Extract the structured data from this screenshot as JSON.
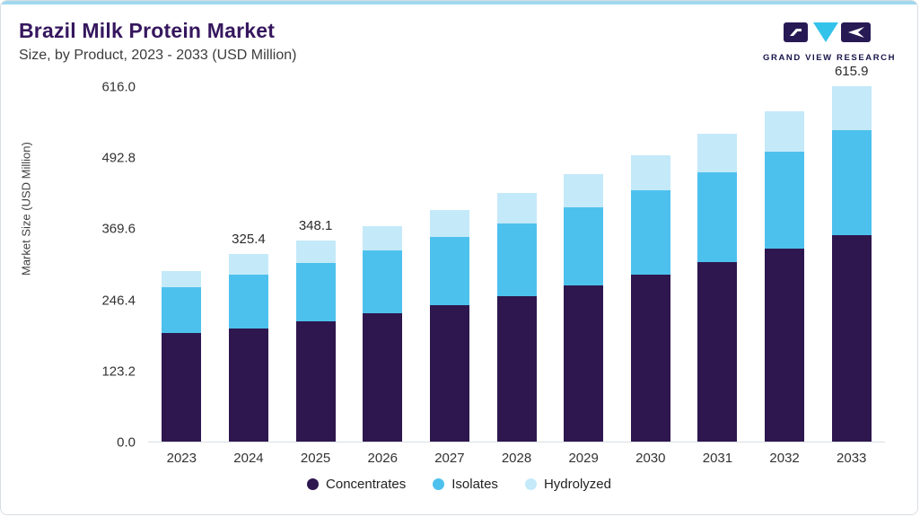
{
  "header": {
    "title": "Brazil Milk Protein Market",
    "subtitle": "Size, by Product, 2023 - 2033 (USD Million)"
  },
  "logo": {
    "text": "GRAND VIEW RESEARCH",
    "dark_color": "#271a54",
    "cyan_color": "#33c3ea"
  },
  "chart_data": {
    "type": "bar",
    "stacked": true,
    "title": "Brazil Milk Protein Market Size, by Product, 2023 - 2033 (USD Million)",
    "ylabel": "Market Size (USD Million)",
    "ylim": [
      0,
      616.0
    ],
    "yticks": [
      "0.0",
      "123.2",
      "246.4",
      "369.6",
      "492.8",
      "616.0"
    ],
    "grid": false,
    "legend_position": "bottom",
    "categories": [
      "2023",
      "2024",
      "2025",
      "2026",
      "2027",
      "2028",
      "2029",
      "2030",
      "2031",
      "2032",
      "2033"
    ],
    "series": [
      {
        "name": "Concentrates",
        "color": "#2e174e",
        "values": [
          188,
          196,
          209,
          222,
          237,
          252,
          271,
          290,
          311,
          334,
          358
        ]
      },
      {
        "name": "Isolates",
        "color": "#4dc1ed",
        "values": [
          80,
          93,
          101,
          109,
          117,
          126,
          135,
          145,
          156,
          168,
          182
        ]
      },
      {
        "name": "Hydrolyzed",
        "color": "#c4e9f9",
        "values": [
          28,
          36.4,
          38.1,
          43,
          48,
          53,
          57,
          62,
          67,
          71,
          75.9
        ]
      }
    ],
    "bar_labels": {
      "2024": "325.4",
      "2025": "348.1",
      "2033": "615.9"
    }
  }
}
